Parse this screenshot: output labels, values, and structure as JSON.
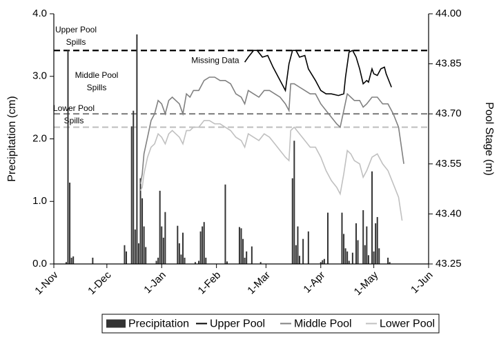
{
  "chart_data": {
    "type": "combo",
    "xlabel": null,
    "ylabel": "Precipitation (cm)",
    "y2label": "Pool Stage (m)",
    "xlim": [
      0,
      212
    ],
    "xticks": [
      {
        "value": 0,
        "label": "1-Nov"
      },
      {
        "value": 30,
        "label": "1-Dec"
      },
      {
        "value": 61,
        "label": "1-Jan"
      },
      {
        "value": 92,
        "label": "1-Feb"
      },
      {
        "value": 120,
        "label": "1-Mar"
      },
      {
        "value": 151,
        "label": "1-Apr"
      },
      {
        "value": 181,
        "label": "1-May"
      },
      {
        "value": 212,
        "label": "1-Jun"
      }
    ],
    "ylim": [
      0,
      4
    ],
    "yticks": [
      {
        "value": 0,
        "label": "0.0"
      },
      {
        "value": 1,
        "label": "1.0"
      },
      {
        "value": 2,
        "label": "2.0"
      },
      {
        "value": 3,
        "label": "3.0"
      },
      {
        "value": 4,
        "label": "4.0"
      }
    ],
    "y2lim": [
      43.25,
      44.0
    ],
    "y2ticks": [
      43.25,
      {
        "value": 43.4,
        "label": "43.40"
      },
      43.55,
      {
        "value": 43.7,
        "label": "43.70"
      },
      43.85,
      {
        "value": 44.0,
        "label": "44.00"
      }
    ],
    "grid": false,
    "legend": "bottom",
    "series": [
      {
        "name": "Precipitation",
        "type": "bar",
        "color": "#333333",
        "axis": "y",
        "x": [
          7,
          8,
          9,
          10,
          11,
          22,
          40,
          41,
          44,
          45,
          46,
          47,
          48,
          49,
          50,
          51,
          52,
          58,
          59,
          60,
          61,
          62,
          63,
          70,
          71,
          72,
          73,
          74,
          80,
          82,
          83,
          84,
          85,
          86,
          97,
          98,
          105,
          106,
          107,
          108,
          109,
          112,
          117,
          135,
          136,
          137,
          138,
          139,
          141,
          144,
          151,
          152,
          153,
          155,
          163,
          164,
          165,
          166,
          167,
          169,
          171,
          172,
          175,
          176,
          177,
          178,
          180,
          181,
          182,
          183,
          184,
          189,
          190
        ],
        "values": [
          0.03,
          3.42,
          1.3,
          0.1,
          0.12,
          0.1,
          0.3,
          0.2,
          2.2,
          2.45,
          0.55,
          3.67,
          0.33,
          1.37,
          1.05,
          0.6,
          0.27,
          0.05,
          0.1,
          1.17,
          0.6,
          0.42,
          0.83,
          0.61,
          0.33,
          0.15,
          0.5,
          0.1,
          0.03,
          0.05,
          0.52,
          0.6,
          0.67,
          0.1,
          1.27,
          0.04,
          0.59,
          0.57,
          0.4,
          0.1,
          0.2,
          0.28,
          0.03,
          1.37,
          1.97,
          0.3,
          0.6,
          0.13,
          0.4,
          0.52,
          0.03,
          0.06,
          0.08,
          0.82,
          0.82,
          0.48,
          0.25,
          0.2,
          0.05,
          0.18,
          0.65,
          0.38,
          0.86,
          0.3,
          0.6,
          0.14,
          1.48,
          0.2,
          0.65,
          0.75,
          0.25,
          0.1,
          0.03
        ]
      },
      {
        "name": "Upper Pool",
        "type": "line",
        "color": "#000000",
        "axis": "y2",
        "x": [
          108,
          110,
          113,
          115,
          118,
          121,
          124,
          127,
          130,
          131,
          133,
          135,
          137,
          139,
          142,
          144,
          148,
          151,
          154,
          157,
          161,
          164,
          165,
          167,
          169,
          171,
          173,
          175,
          177,
          178,
          180,
          181,
          183,
          185,
          187,
          188,
          191
        ],
        "values": [
          43.855,
          43.87,
          43.89,
          43.89,
          43.87,
          43.875,
          43.84,
          43.81,
          43.78,
          43.77,
          43.85,
          43.89,
          43.89,
          43.87,
          43.875,
          43.835,
          43.8,
          43.77,
          43.76,
          43.76,
          43.755,
          43.76,
          43.81,
          43.885,
          43.89,
          43.87,
          43.835,
          43.79,
          43.8,
          43.795,
          43.835,
          43.82,
          43.815,
          43.835,
          43.84,
          43.82,
          43.78
        ]
      },
      {
        "name": "Middle Pool",
        "type": "line",
        "color": "#808080",
        "axis": "y2",
        "x": [
          49,
          50,
          51,
          53,
          55,
          57,
          59,
          61,
          63,
          65,
          67,
          69,
          71,
          73,
          75,
          77,
          79,
          82,
          85,
          88,
          91,
          94,
          97,
          100,
          103,
          106,
          108,
          110,
          113,
          116,
          119,
          122,
          125,
          128,
          131,
          133,
          134,
          136,
          139,
          142,
          145,
          148,
          151,
          154,
          157,
          160,
          162,
          164,
          166,
          168,
          170,
          173,
          175,
          177,
          180,
          183,
          186,
          189,
          192,
          195,
          198
        ],
        "values": [
          43.49,
          43.52,
          43.58,
          43.63,
          43.68,
          43.7,
          43.74,
          43.73,
          43.7,
          43.74,
          43.75,
          43.74,
          43.73,
          43.7,
          43.76,
          43.75,
          43.77,
          43.77,
          43.8,
          43.81,
          43.81,
          43.8,
          43.8,
          43.79,
          43.76,
          43.75,
          43.73,
          43.77,
          43.76,
          43.75,
          43.77,
          43.77,
          43.76,
          43.75,
          43.73,
          43.71,
          43.79,
          43.79,
          43.78,
          43.77,
          43.76,
          43.76,
          43.73,
          43.71,
          43.69,
          43.67,
          43.66,
          43.71,
          43.76,
          43.75,
          43.74,
          43.74,
          43.72,
          43.73,
          43.75,
          43.75,
          43.73,
          43.73,
          43.7,
          43.66,
          43.55
        ]
      },
      {
        "name": "Lower Pool",
        "type": "line",
        "color": "#c0c0c0",
        "axis": "y2",
        "x": [
          49,
          50,
          51,
          53,
          55,
          57,
          59,
          61,
          63,
          65,
          67,
          69,
          71,
          73,
          75,
          77,
          79,
          82,
          85,
          88,
          91,
          94,
          97,
          100,
          103,
          106,
          108,
          110,
          113,
          116,
          119,
          122,
          125,
          128,
          131,
          133,
          134,
          136,
          139,
          142,
          145,
          148,
          151,
          154,
          157,
          160,
          162,
          164,
          166,
          168,
          170,
          173,
          175,
          177,
          180,
          183,
          186,
          189,
          192,
          195,
          197
        ],
        "values": [
          43.47,
          43.48,
          43.52,
          43.57,
          43.6,
          43.61,
          43.64,
          43.63,
          43.61,
          43.64,
          43.65,
          43.64,
          43.63,
          43.61,
          43.65,
          43.65,
          43.66,
          43.66,
          43.68,
          43.68,
          43.67,
          43.67,
          43.66,
          43.65,
          43.63,
          43.62,
          43.6,
          43.64,
          43.63,
          43.62,
          43.64,
          43.63,
          43.61,
          43.59,
          43.57,
          43.56,
          43.65,
          43.66,
          43.64,
          43.62,
          43.6,
          43.6,
          43.57,
          43.53,
          43.5,
          43.48,
          43.46,
          43.52,
          43.59,
          43.58,
          43.56,
          43.55,
          43.51,
          43.53,
          43.57,
          43.58,
          43.55,
          43.53,
          43.49,
          43.45,
          43.38
        ]
      }
    ],
    "reference_lines": [
      {
        "lines": [
          "Upper Pool",
          "Spills"
        ],
        "value": 43.89,
        "color": "#000000",
        "axis": "y2"
      },
      {
        "lines": [
          "Middle Pool",
          "Spills"
        ],
        "value": 43.7,
        "color": "#808080",
        "axis": "y2"
      },
      {
        "lines": [
          "Lower Pool",
          "Spills"
        ],
        "value": 43.66,
        "color": "#c0c0c0",
        "axis": "y2"
      }
    ],
    "annotations": [
      {
        "text": "Missing Data",
        "x": 108,
        "y": 43.855,
        "axis": "y2"
      }
    ]
  }
}
